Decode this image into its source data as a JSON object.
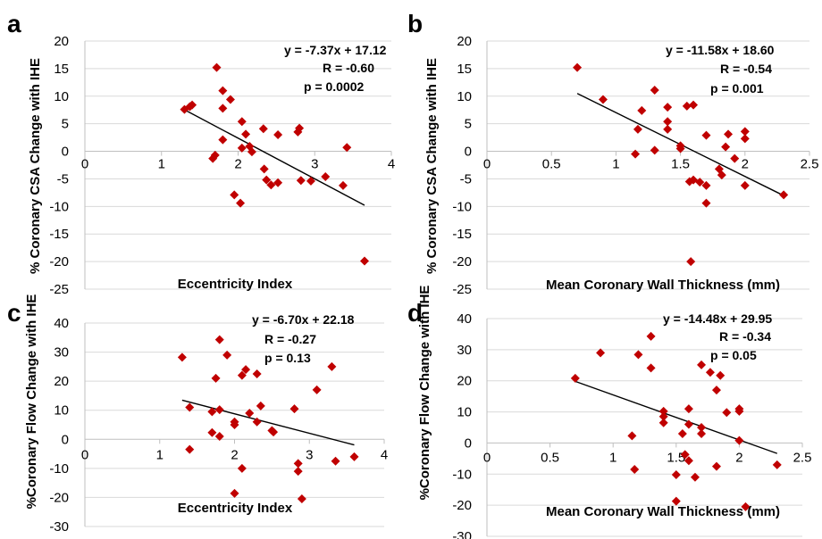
{
  "marker_color": "#c00000",
  "chart_data": [
    {
      "type": "scatter",
      "panel": "a",
      "xlabel": "Eccentricity Index",
      "ylabel": "% Coronary CSA Change with IHE",
      "xlim": [
        0,
        4
      ],
      "ylim": [
        -25,
        20
      ],
      "xticks": [
        0,
        1,
        2,
        3,
        4
      ],
      "yticks": [
        20,
        15,
        10,
        5,
        0,
        -5,
        -10,
        -15,
        -20,
        -25
      ],
      "grid": true,
      "annotations": [
        "y = -7.37x + 17.12",
        "R = -0.60",
        "p = 0.0002"
      ],
      "trendline": {
        "slope": -7.37,
        "intercept": 17.12,
        "x_range": [
          1.3,
          3.65
        ]
      },
      "points": [
        [
          1.3,
          7.6
        ],
        [
          1.37,
          8.1
        ],
        [
          1.4,
          8.4
        ],
        [
          1.72,
          15.2
        ],
        [
          1.8,
          11.0
        ],
        [
          1.8,
          7.8
        ],
        [
          1.9,
          9.4
        ],
        [
          1.8,
          2.1
        ],
        [
          1.7,
          -0.7
        ],
        [
          1.67,
          -1.3
        ],
        [
          2.05,
          5.4
        ],
        [
          2.1,
          3.1
        ],
        [
          2.05,
          0.6
        ],
        [
          2.15,
          0.9
        ],
        [
          2.18,
          -0.1
        ],
        [
          1.95,
          -7.9
        ],
        [
          2.03,
          -9.4
        ],
        [
          2.33,
          4.1
        ],
        [
          2.34,
          -3.2
        ],
        [
          2.37,
          -5.2
        ],
        [
          2.43,
          -6.1
        ],
        [
          2.52,
          3.0
        ],
        [
          2.52,
          -5.7
        ],
        [
          2.8,
          4.2
        ],
        [
          2.78,
          3.5
        ],
        [
          2.82,
          -5.3
        ],
        [
          2.95,
          -5.4
        ],
        [
          3.14,
          -4.6
        ],
        [
          3.37,
          -6.2
        ],
        [
          3.42,
          0.7
        ],
        [
          3.65,
          -19.9
        ]
      ]
    },
    {
      "type": "scatter",
      "panel": "b",
      "xlabel": "Mean Coronary Wall Thickness (mm)",
      "ylabel": "% Coronary CSA Change with IHE",
      "xlim": [
        0,
        2.5
      ],
      "ylim": [
        -25,
        20
      ],
      "xticks": [
        0,
        0.5,
        1,
        1.5,
        2,
        2.5
      ],
      "yticks": [
        20,
        15,
        10,
        5,
        0,
        -5,
        -10,
        -15,
        -20,
        -25
      ],
      "grid": true,
      "annotations": [
        "y = -11.58x + 18.60",
        "R = -0.54",
        "p = 0.001"
      ],
      "trendline": {
        "slope": -11.58,
        "intercept": 18.6,
        "x_range": [
          0.7,
          2.3
        ]
      },
      "points": [
        [
          0.7,
          15.2
        ],
        [
          0.9,
          9.4
        ],
        [
          1.15,
          -0.5
        ],
        [
          1.17,
          4.0
        ],
        [
          1.2,
          7.4
        ],
        [
          1.3,
          11.1
        ],
        [
          1.3,
          0.2
        ],
        [
          1.4,
          8.0
        ],
        [
          1.4,
          5.4
        ],
        [
          1.4,
          4.0
        ],
        [
          1.5,
          1.0
        ],
        [
          1.5,
          0.5
        ],
        [
          1.55,
          8.2
        ],
        [
          1.6,
          8.4
        ],
        [
          1.57,
          -5.5
        ],
        [
          1.6,
          -5.2
        ],
        [
          1.58,
          -20.0
        ],
        [
          1.65,
          -5.6
        ],
        [
          1.7,
          -6.2
        ],
        [
          1.7,
          2.9
        ],
        [
          1.7,
          -9.4
        ],
        [
          1.8,
          -3.2
        ],
        [
          1.82,
          -4.3
        ],
        [
          1.85,
          0.8
        ],
        [
          1.87,
          3.1
        ],
        [
          1.92,
          -1.3
        ],
        [
          2.0,
          3.6
        ],
        [
          2.0,
          2.3
        ],
        [
          2.0,
          -6.2
        ],
        [
          2.3,
          -7.9
        ]
      ]
    },
    {
      "type": "scatter",
      "panel": "c",
      "xlabel": "Eccentricity Index",
      "ylabel": "%Coronary Flow Change with IHE",
      "xlim": [
        0,
        4
      ],
      "ylim": [
        -30,
        40
      ],
      "xticks": [
        0,
        1,
        2,
        3,
        4
      ],
      "yticks": [
        40,
        30,
        20,
        10,
        0,
        -10,
        -20,
        -30
      ],
      "grid": true,
      "annotations": [
        "y = -6.70x + 22.18",
        "R = -0.27",
        "p = 0.13"
      ],
      "trendline": {
        "slope": -6.7,
        "intercept": 22.18,
        "x_range": [
          1.3,
          3.6
        ]
      },
      "points": [
        [
          1.3,
          28.2
        ],
        [
          1.4,
          11.0
        ],
        [
          1.4,
          -3.5
        ],
        [
          1.7,
          9.5
        ],
        [
          1.75,
          21.0
        ],
        [
          1.8,
          34.3
        ],
        [
          1.8,
          10.2
        ],
        [
          1.7,
          2.3
        ],
        [
          1.8,
          1.0
        ],
        [
          1.9,
          29.0
        ],
        [
          2.0,
          6.0
        ],
        [
          2.0,
          5.0
        ],
        [
          2.1,
          22.0
        ],
        [
          2.15,
          24.0
        ],
        [
          2.1,
          -10.0
        ],
        [
          2.0,
          -18.6
        ],
        [
          2.2,
          9.0
        ],
        [
          2.3,
          22.5
        ],
        [
          2.3,
          6.0
        ],
        [
          2.35,
          11.5
        ],
        [
          2.5,
          3.0
        ],
        [
          2.52,
          2.5
        ],
        [
          2.8,
          10.5
        ],
        [
          2.85,
          -8.3
        ],
        [
          2.85,
          -11.0
        ],
        [
          2.9,
          -20.5
        ],
        [
          3.1,
          17.0
        ],
        [
          3.3,
          25.0
        ],
        [
          3.35,
          -7.5
        ],
        [
          3.6,
          -6.0
        ]
      ]
    },
    {
      "type": "scatter",
      "panel": "d",
      "xlabel": "Mean Coronary Wall Thickness (mm)",
      "ylabel": "%Coronary Flow Change with IHE",
      "xlim": [
        0,
        2.5
      ],
      "ylim": [
        -30,
        40
      ],
      "xticks": [
        0,
        0.5,
        1,
        1.5,
        2,
        2.5
      ],
      "yticks": [
        40,
        30,
        20,
        10,
        0,
        -10,
        -20,
        -30
      ],
      "grid": true,
      "annotations": [
        "y = -14.48x + 29.95",
        "R = -0.34",
        "p = 0.05"
      ],
      "trendline": {
        "slope": -14.48,
        "intercept": 29.95,
        "x_range": [
          0.7,
          2.3
        ]
      },
      "points": [
        [
          0.7,
          20.8
        ],
        [
          0.9,
          29.0
        ],
        [
          1.15,
          2.3
        ],
        [
          1.17,
          -8.5
        ],
        [
          1.2,
          28.4
        ],
        [
          1.3,
          34.3
        ],
        [
          1.3,
          24.1
        ],
        [
          1.4,
          10.2
        ],
        [
          1.4,
          8.5
        ],
        [
          1.4,
          6.5
        ],
        [
          1.5,
          -10.2
        ],
        [
          1.5,
          -18.7
        ],
        [
          1.55,
          3.0
        ],
        [
          1.57,
          -3.7
        ],
        [
          1.6,
          -5.7
        ],
        [
          1.6,
          6.0
        ],
        [
          1.6,
          11.0
        ],
        [
          1.65,
          -11.0
        ],
        [
          1.7,
          25.1
        ],
        [
          1.7,
          5.0
        ],
        [
          1.7,
          3.0
        ],
        [
          1.77,
          22.7
        ],
        [
          1.82,
          17.0
        ],
        [
          1.82,
          -7.5
        ],
        [
          1.85,
          21.7
        ],
        [
          1.9,
          9.8
        ],
        [
          2.0,
          11.0
        ],
        [
          2.0,
          10.2
        ],
        [
          2.0,
          0.8
        ],
        [
          2.05,
          -20.5
        ],
        [
          2.3,
          -7.0
        ]
      ]
    }
  ]
}
